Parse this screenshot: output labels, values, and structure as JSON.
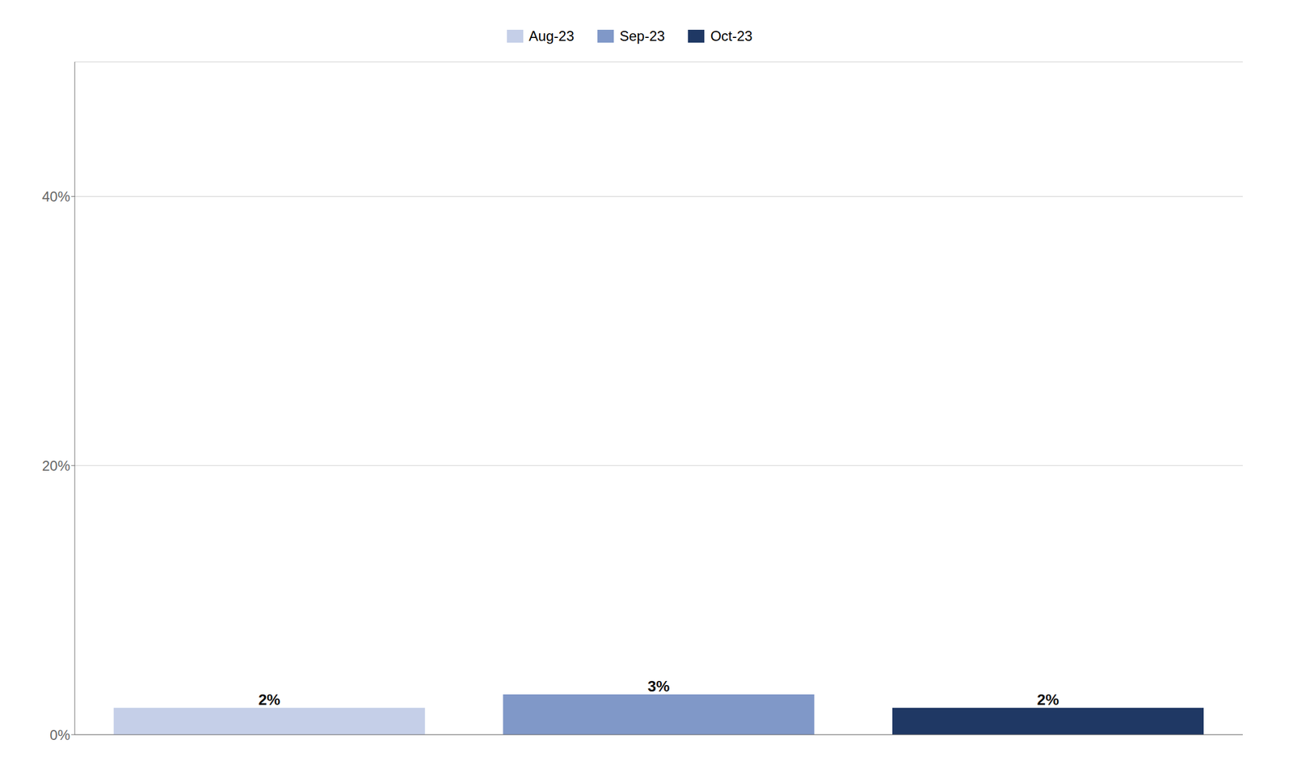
{
  "chart_data": {
    "type": "bar",
    "categories": [
      "Aug-23",
      "Sep-23",
      "Oct-23"
    ],
    "values": [
      2,
      3,
      2
    ],
    "value_labels": [
      "2%",
      "3%",
      "2%"
    ],
    "colors": [
      "#c5cfe8",
      "#8098c8",
      "#1f3864"
    ],
    "ylim": [
      0,
      50
    ],
    "yticks": [
      {
        "value": 0,
        "label": "0%"
      },
      {
        "value": 20,
        "label": "20%"
      },
      {
        "value": 40,
        "label": "40%"
      }
    ],
    "grid": true,
    "legend": "top",
    "data_labels": true,
    "tick_labels": "y"
  }
}
